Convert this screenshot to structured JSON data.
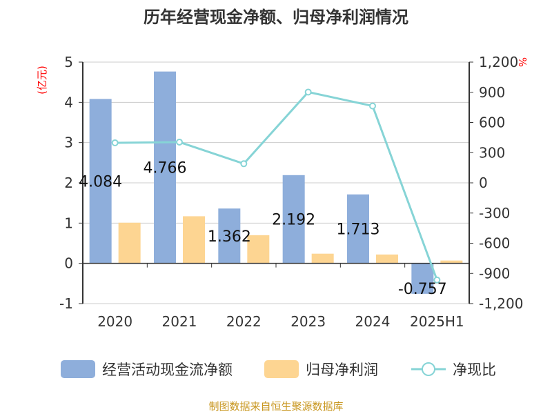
{
  "chart_data": {
    "type": "bar",
    "title": "历年经营现金净额、归母净利润情况",
    "categories": [
      "2020",
      "2021",
      "2022",
      "2023",
      "2024",
      "2025H1"
    ],
    "y_left": {
      "unit_label": "(亿元)",
      "range": [
        -1,
        5
      ],
      "ticks": [
        "-1",
        "0",
        "1",
        "2",
        "3",
        "4",
        "5"
      ]
    },
    "y_right": {
      "unit_label": "%",
      "range": [
        -1200,
        1200
      ],
      "ticks": [
        "-1,200",
        "-900",
        "-600",
        "-300",
        "0",
        "300",
        "600",
        "900",
        "1,200"
      ]
    },
    "grid": true,
    "legend_placement": "bottom",
    "series": [
      {
        "name": "经营活动现金流净额",
        "type": "bar",
        "axis": "left",
        "color": "#8eaedb",
        "values": [
          4.084,
          4.766,
          1.362,
          2.192,
          1.713,
          -0.757
        ],
        "labels": [
          "4.084",
          "4.766",
          "1.362",
          "2.192",
          "1.713",
          "-0.757"
        ]
      },
      {
        "name": "归母净利润",
        "type": "bar",
        "axis": "left",
        "color": "#fdd592",
        "values": [
          1.01,
          1.17,
          0.7,
          0.24,
          0.22,
          0.07
        ]
      },
      {
        "name": "净现比",
        "type": "line",
        "axis": "right",
        "color": "#86d4d6",
        "values": [
          398,
          405,
          190,
          902,
          764,
          -965
        ]
      }
    ]
  },
  "footer": {
    "source": "制图数据来自恒生聚源数据库"
  },
  "colors": {
    "title": "#333333",
    "unit": "#ff0000",
    "source": "#c8961e"
  }
}
